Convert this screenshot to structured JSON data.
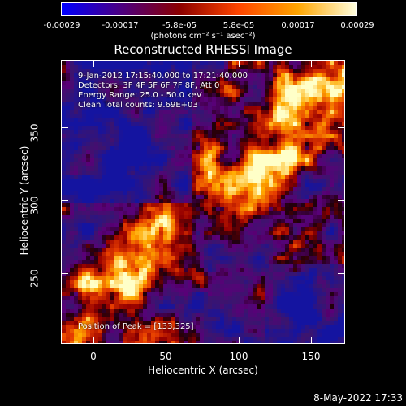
{
  "colorbar": {
    "ticks": [
      "-0.00029",
      "-0.00017",
      "-5.8e-05",
      "5.8e-05",
      "0.00017",
      "0.00029"
    ],
    "unit": "(photons cm⁻² s⁻¹ asec⁻²)",
    "colors": [
      "#0000ff",
      "#4b0082",
      "#8b0000",
      "#ff4500",
      "#ffa500",
      "#ffffe0"
    ]
  },
  "title": "Reconstructed RHESSI Image",
  "info": {
    "time": "9-Jan-2012 17:15:40.000 to 17:21:40.000",
    "detectors": "Detectors: 3F 4F 5F 6F 7F 8F, Att 0",
    "energy": "Energy Range: 25.0 - 50.0 keV",
    "clean": "Clean    Total counts: 9.69E+03",
    "peak": "Position of Peak = [133,325]"
  },
  "axes": {
    "xlabel": "Heliocentric X (arcsec)",
    "ylabel": "Heliocentric Y (arcsec)",
    "xticks": [
      "0",
      "50",
      "100",
      "150"
    ],
    "yticks": [
      "250",
      "300",
      "350"
    ]
  },
  "footer": {
    "date": "8-May-2022 17:33"
  }
}
